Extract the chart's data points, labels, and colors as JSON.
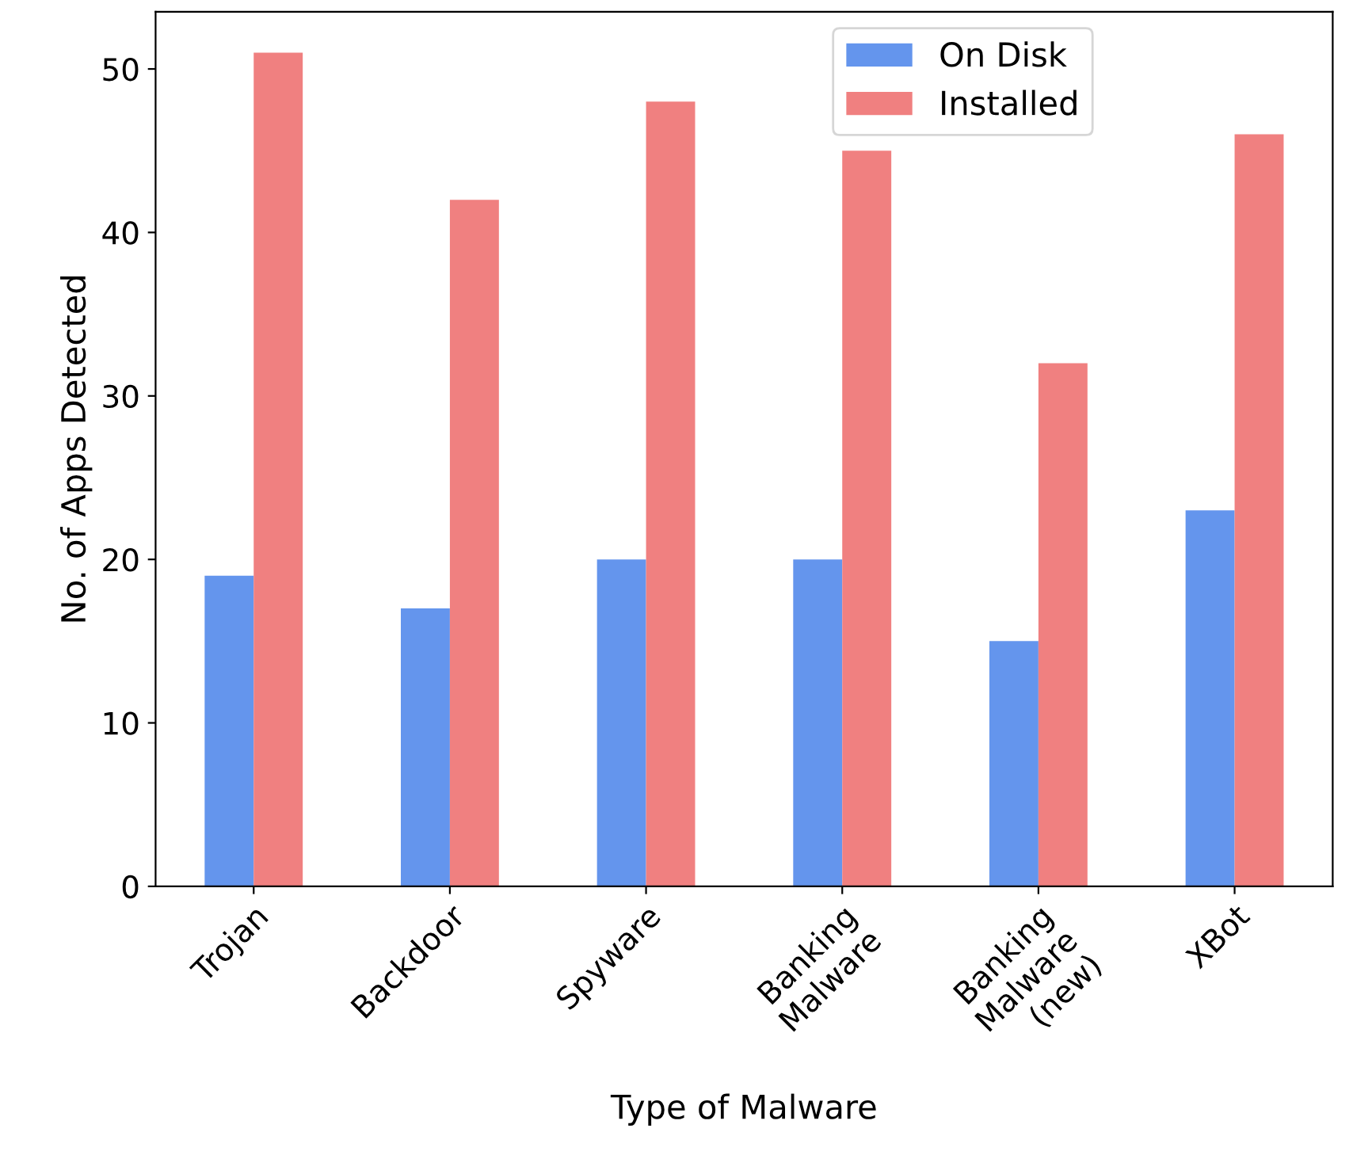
{
  "chart_data": {
    "type": "bar",
    "xlabel": "Type of Malware",
    "ylabel": "No. of Apps Detected",
    "categories": [
      "Trojan",
      "Backdoor",
      "Spyware",
      "Banking\nMalware",
      "Banking\nMalware\n(new)",
      "XBot"
    ],
    "series": [
      {
        "name": "On Disk",
        "color": "#6495ed",
        "values": [
          19,
          17,
          20,
          20,
          15,
          23
        ]
      },
      {
        "name": "Installed",
        "color": "#f08080",
        "values": [
          51,
          42,
          48,
          45,
          32,
          46
        ]
      }
    ],
    "ylim": [
      0,
      53.5
    ],
    "yticks": [
      0,
      10,
      20,
      30,
      40,
      50
    ],
    "grid": false,
    "legend": "top right"
  }
}
